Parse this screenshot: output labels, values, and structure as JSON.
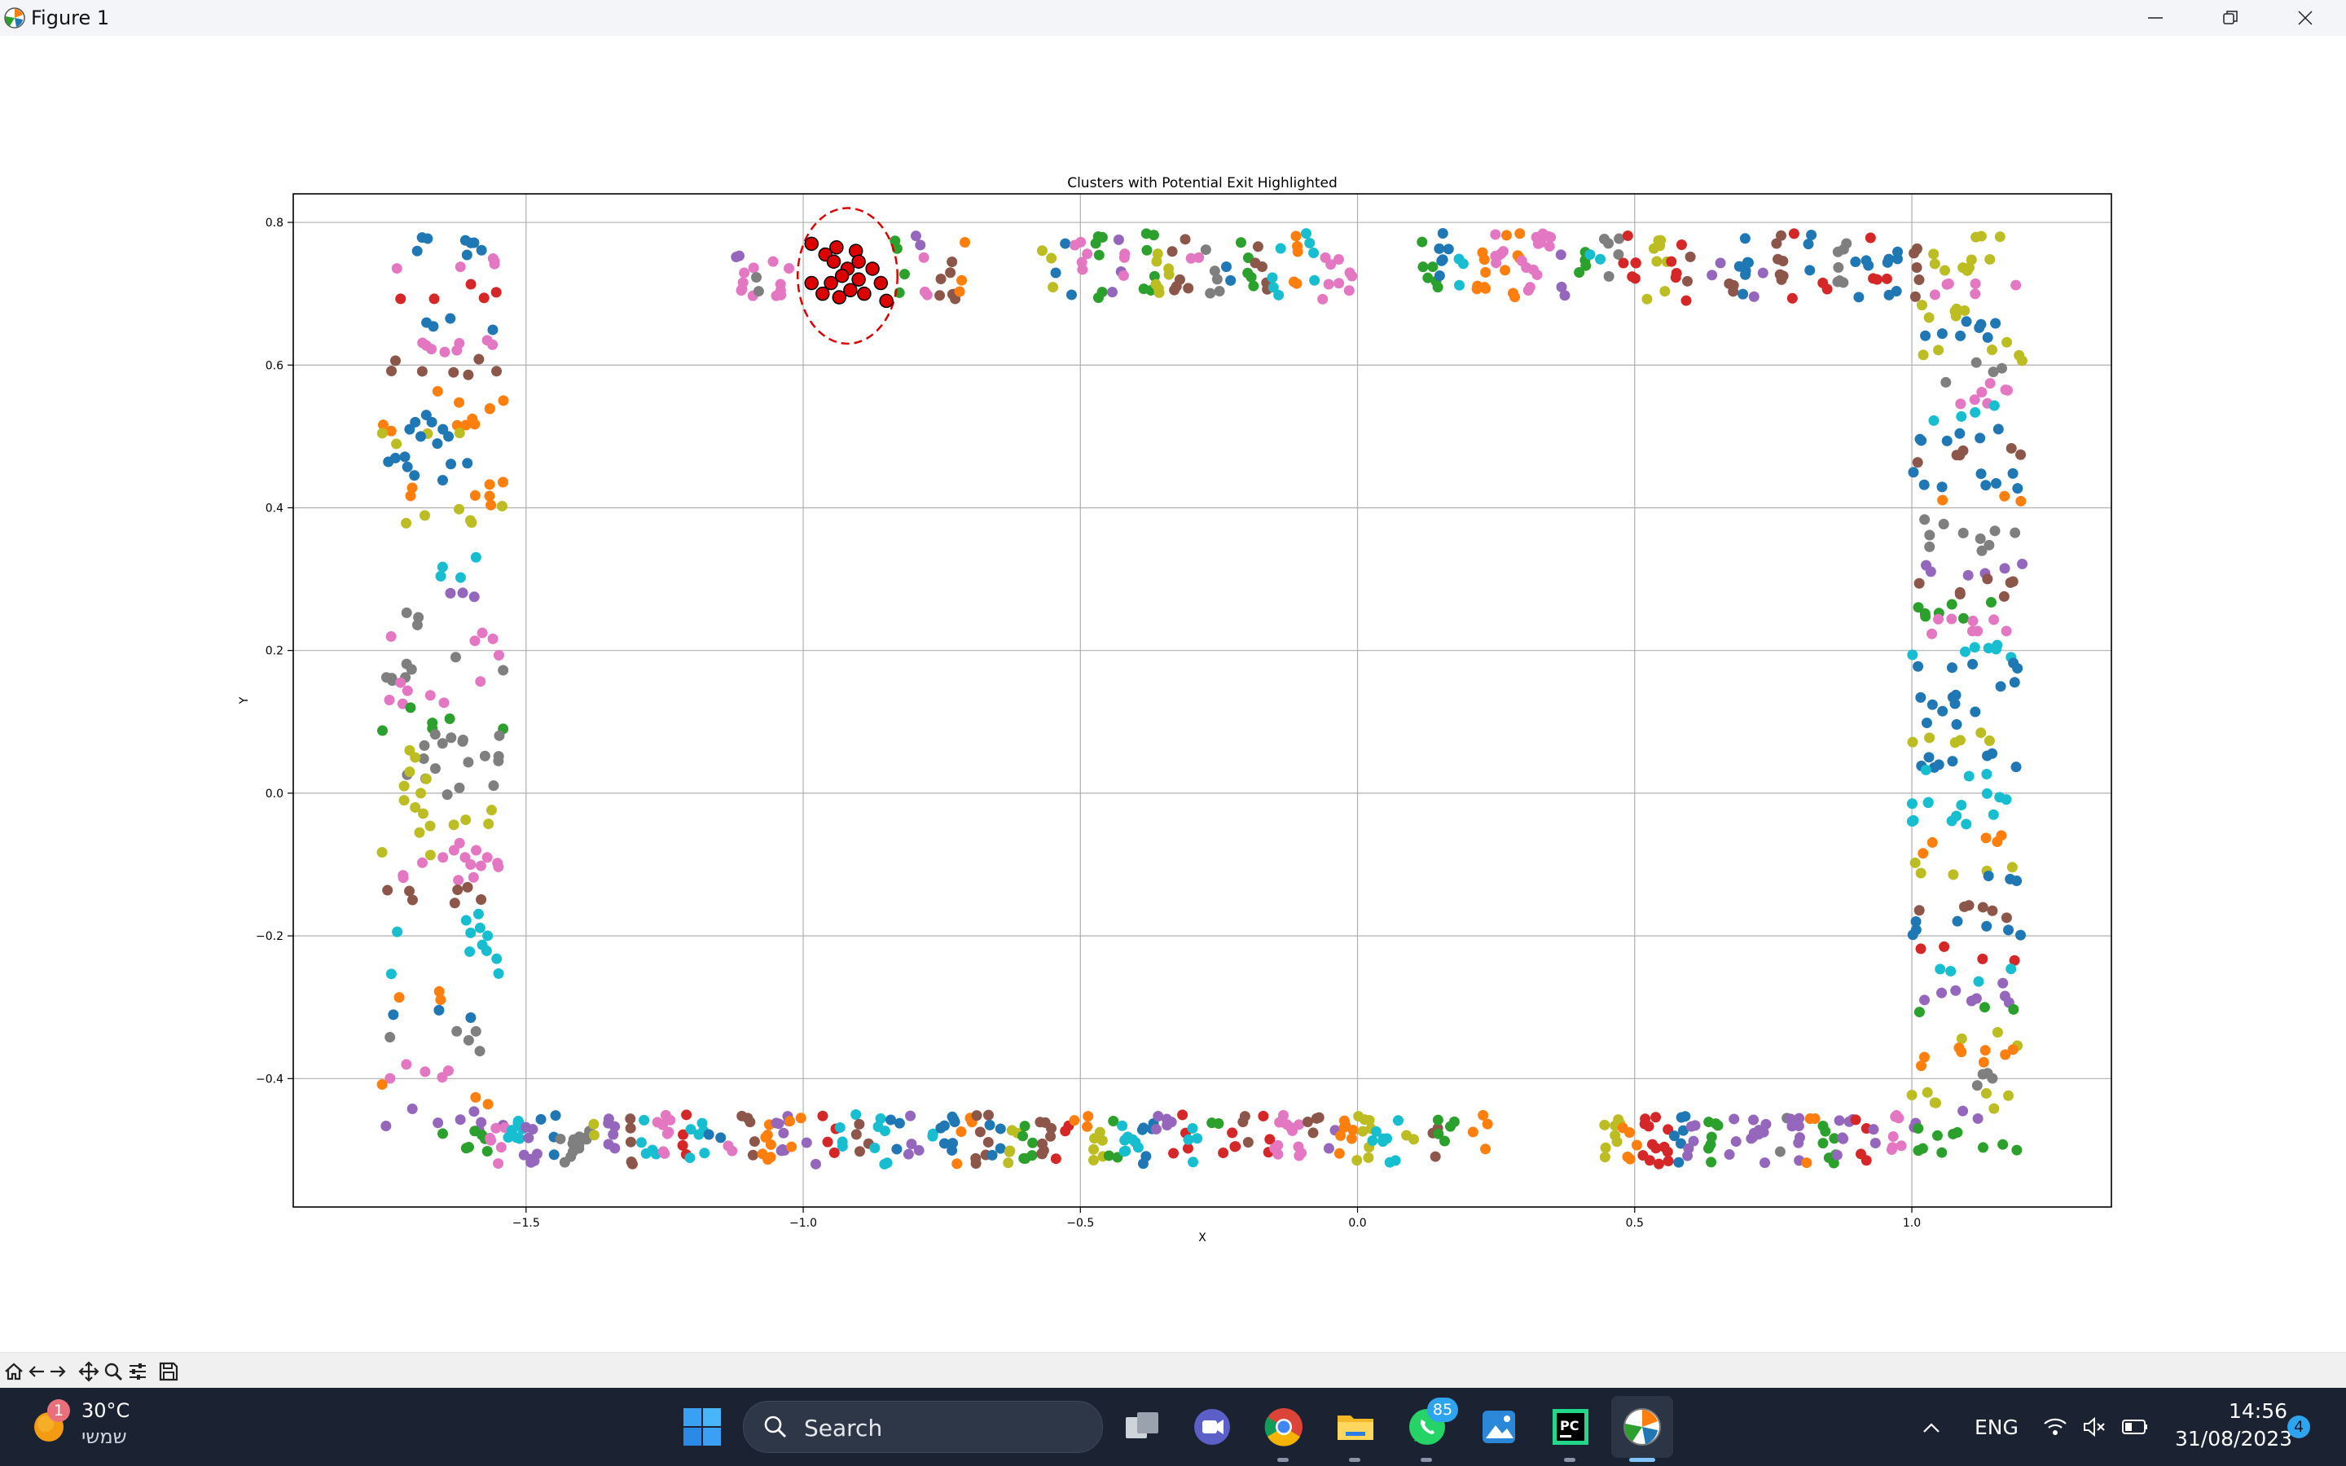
{
  "window": {
    "title": "Figure 1"
  },
  "chart_data": {
    "type": "scatter",
    "title": "Clusters with Potential Exit Highlighted",
    "xlabel": "X",
    "ylabel": "Y",
    "xlim": [
      -1.92,
      1.36
    ],
    "ylim": [
      -0.58,
      0.84
    ],
    "xticks": [
      -1.5,
      -1.0,
      -0.5,
      0.0,
      0.5,
      1.0
    ],
    "yticks": [
      -0.4,
      -0.2,
      0.0,
      0.2,
      0.4,
      0.6,
      0.8
    ],
    "xtick_labels": [
      "−1.5",
      "−1.0",
      "−0.5",
      "0.0",
      "0.5",
      "1.0"
    ],
    "ytick_labels": [
      "−0.4",
      "−0.2",
      "0.0",
      "0.2",
      "0.4",
      "0.6",
      "0.8"
    ],
    "grid": true,
    "palette": [
      "#1f77b4",
      "#ff7f0e",
      "#2ca02c",
      "#d62728",
      "#9467bd",
      "#8c564b",
      "#e377c2",
      "#7f7f7f",
      "#bcbd22",
      "#17becf"
    ],
    "highlight": {
      "color": "#dd0000",
      "edge_color": "#000000",
      "circle_style": "dashed",
      "circle_center": [
        -0.92,
        0.725
      ],
      "circle_radius": [
        0.09,
        0.095
      ],
      "points": [
        [
          -0.985,
          0.77
        ],
        [
          -0.96,
          0.755
        ],
        [
          -0.94,
          0.765
        ],
        [
          -0.945,
          0.745
        ],
        [
          -0.92,
          0.735
        ],
        [
          -0.905,
          0.76
        ],
        [
          -0.985,
          0.715
        ],
        [
          -0.965,
          0.7
        ],
        [
          -0.95,
          0.715
        ],
        [
          -0.93,
          0.725
        ],
        [
          -0.915,
          0.705
        ],
        [
          -0.9,
          0.72
        ],
        [
          -0.89,
          0.7
        ],
        [
          -0.875,
          0.735
        ],
        [
          -0.86,
          0.715
        ],
        [
          -0.85,
          0.69
        ],
        [
          -0.9,
          0.745
        ],
        [
          -0.935,
          0.695
        ]
      ]
    },
    "series": [
      {
        "color": "#bcbd22",
        "points": [
          [
            -1.72,
            0.01
          ],
          [
            -1.71,
            0.03
          ],
          [
            -1.7,
            0.05
          ],
          [
            -1.72,
            -0.01
          ],
          [
            -1.69,
            0.0
          ],
          [
            -1.7,
            -0.02
          ],
          [
            -1.71,
            0.06
          ],
          [
            -1.68,
            0.02
          ]
        ]
      },
      {
        "color": "#1f77b4",
        "points": [
          [
            -1.71,
            0.51
          ],
          [
            -1.69,
            0.5
          ],
          [
            -1.67,
            0.52
          ],
          [
            -1.65,
            0.51
          ],
          [
            -1.66,
            0.49
          ],
          [
            -1.7,
            0.52
          ],
          [
            -1.64,
            0.5
          ],
          [
            -1.68,
            0.53
          ]
        ]
      },
      {
        "color": "#e377c2",
        "points": [
          [
            -1.65,
            -0.09
          ],
          [
            -1.63,
            -0.08
          ],
          [
            -1.61,
            -0.09
          ],
          [
            -1.59,
            -0.08
          ],
          [
            -1.57,
            -0.09
          ],
          [
            -1.6,
            -0.1
          ],
          [
            -1.62,
            -0.07
          ]
        ]
      }
    ]
  },
  "toolbar": {
    "icons": [
      "home-icon",
      "back-arrow-icon",
      "forward-arrow-icon",
      "pan-icon",
      "zoom-icon",
      "configure-subplots-icon",
      "save-icon"
    ]
  },
  "taskbar": {
    "weather_temp": "30°C",
    "weather_text": "שמשי",
    "weather_badge": "1",
    "search_placeholder": "Search",
    "whatsapp_badge": "85",
    "language": "ENG",
    "time": "14:56",
    "date": "31/08/2023",
    "notification_count": "4"
  }
}
